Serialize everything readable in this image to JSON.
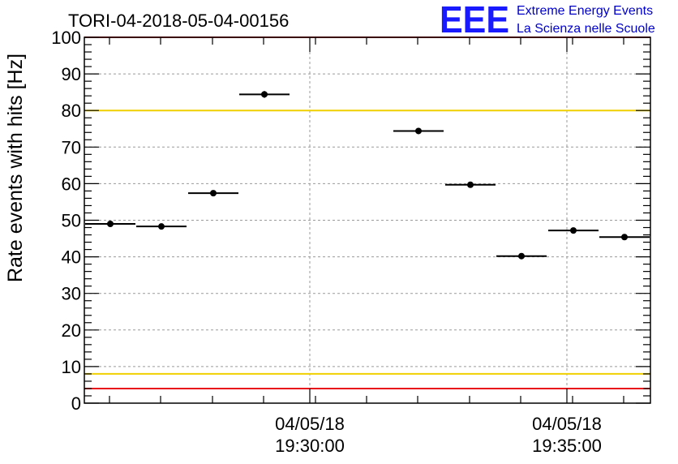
{
  "chart_data": {
    "type": "scatter",
    "title": "TORI-04-2018-05-04-00156",
    "ylabel": "Rate events with hits [Hz]",
    "xlabel": "",
    "ylim": [
      0,
      100
    ],
    "y_ticks": [
      "0",
      "10",
      "20",
      "30",
      "40",
      "50",
      "60",
      "70",
      "80",
      "90",
      "100"
    ],
    "x_tick_labels": [
      {
        "date": "04/05/18",
        "time": "19:30:00"
      },
      {
        "date": "04/05/18",
        "time": "19:35:00"
      }
    ],
    "grid": true,
    "reference_lines": [
      {
        "value": 100,
        "color": "#e8101a"
      },
      {
        "value": 80,
        "color": "#f0d000"
      },
      {
        "value": 8,
        "color": "#f0d000"
      },
      {
        "value": 4,
        "color": "#e8101a"
      }
    ],
    "points": [
      {
        "y": 49.0,
        "yerr": 0.6
      },
      {
        "y": 48.3,
        "yerr": 0.6
      },
      {
        "y": 57.4,
        "yerr": 0.6
      },
      {
        "y": 84.4,
        "yerr": 0.9
      },
      {
        "y": 74.4,
        "yerr": 0.8
      },
      {
        "y": 59.7,
        "yerr": 0.6
      },
      {
        "y": 40.2,
        "yerr": 0.5
      },
      {
        "y": 47.2,
        "yerr": 0.5
      },
      {
        "y": 45.4,
        "yerr": 0.5
      }
    ]
  },
  "logo": {
    "letters": "EEE",
    "line1": "Extreme Energy Events",
    "line2": "La Scienza nelle Scuole"
  }
}
